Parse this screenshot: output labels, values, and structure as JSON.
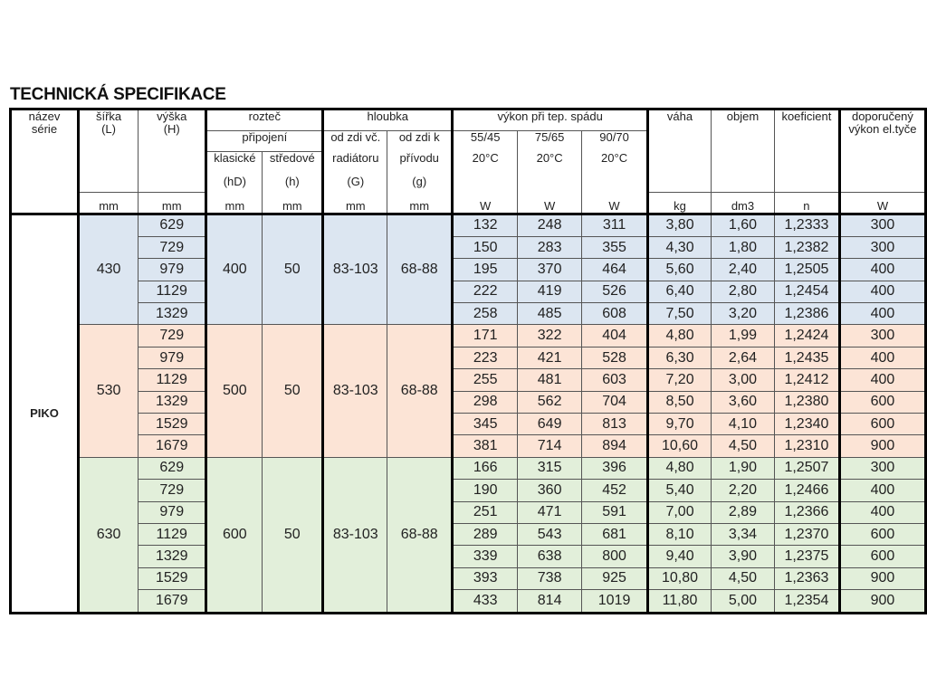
{
  "title": "TECHNICKÁ SPECIFIKACE",
  "header": {
    "nazev": "název série",
    "sirka": "šířka (L)",
    "vyska": "výška (H)",
    "roztec": "rozteč",
    "pripojeni": "připojení",
    "klasicke": "klasické",
    "stredove": "středové",
    "hD": "(hD)",
    "h": "(h)",
    "hloubka": "hloubka",
    "odzdi_vc": "od zdi  vč.",
    "radiatoru": "radiátoru",
    "G": "(G)",
    "odzdi_k": "od zdi  k",
    "privodu": "přívodu",
    "g": "(g)",
    "vykon": "výkon při tep.  spádu",
    "t1": "55/45",
    "t2": "75/65",
    "t3": "90/70",
    "c": "20°C",
    "vaha": "váha",
    "objem": "objem",
    "koeficient": "koeficient",
    "doporuceny": "doporučený výkon el.tyče",
    "units": [
      "mm",
      "mm",
      "mm",
      "mm",
      "mm",
      "mm",
      "W",
      "W",
      "W",
      "kg",
      "dm3",
      "n",
      "W"
    ]
  },
  "series": "PIKO",
  "colors": {
    "blue": "#dce6f1",
    "pink": "#fce4d6",
    "green": "#e2efda"
  },
  "groups": [
    {
      "L": "430",
      "hD": "400",
      "h": "50",
      "G": "83-103",
      "g": "68-88",
      "color": "blue",
      "rows": [
        [
          "629",
          "132",
          "248",
          "311",
          "3,80",
          "1,60",
          "1,2333",
          "300"
        ],
        [
          "729",
          "150",
          "283",
          "355",
          "4,30",
          "1,80",
          "1,2382",
          "300"
        ],
        [
          "979",
          "195",
          "370",
          "464",
          "5,60",
          "2,40",
          "1,2505",
          "400"
        ],
        [
          "1129",
          "222",
          "419",
          "526",
          "6,40",
          "2,80",
          "1,2454",
          "400"
        ],
        [
          "1329",
          "258",
          "485",
          "608",
          "7,50",
          "3,20",
          "1,2386",
          "400"
        ]
      ]
    },
    {
      "L": "530",
      "hD": "500",
      "h": "50",
      "G": "83-103",
      "g": "68-88",
      "color": "pink",
      "rows": [
        [
          "729",
          "171",
          "322",
          "404",
          "4,80",
          "1,99",
          "1,2424",
          "300"
        ],
        [
          "979",
          "223",
          "421",
          "528",
          "6,30",
          "2,64",
          "1,2435",
          "400"
        ],
        [
          "1129",
          "255",
          "481",
          "603",
          "7,20",
          "3,00",
          "1,2412",
          "400"
        ],
        [
          "1329",
          "298",
          "562",
          "704",
          "8,50",
          "3,60",
          "1,2380",
          "600"
        ],
        [
          "1529",
          "345",
          "649",
          "813",
          "9,70",
          "4,10",
          "1,2340",
          "600"
        ],
        [
          "1679",
          "381",
          "714",
          "894",
          "10,60",
          "4,50",
          "1,2310",
          "900"
        ]
      ]
    },
    {
      "L": "630",
      "hD": "600",
      "h": "50",
      "G": "83-103",
      "g": "68-88",
      "color": "green",
      "rows": [
        [
          "629",
          "166",
          "315",
          "396",
          "4,80",
          "1,90",
          "1,2507",
          "300"
        ],
        [
          "729",
          "190",
          "360",
          "452",
          "5,40",
          "2,20",
          "1,2466",
          "400"
        ],
        [
          "979",
          "251",
          "471",
          "591",
          "7,00",
          "2,89",
          "1,2366",
          "400"
        ],
        [
          "1129",
          "289",
          "543",
          "681",
          "8,10",
          "3,34",
          "1,2370",
          "600"
        ],
        [
          "1329",
          "339",
          "638",
          "800",
          "9,40",
          "3,90",
          "1,2375",
          "600"
        ],
        [
          "1529",
          "393",
          "738",
          "925",
          "10,80",
          "4,50",
          "1,2363",
          "900"
        ],
        [
          "1679",
          "433",
          "814",
          "1019",
          "11,80",
          "5,00",
          "1,2354",
          "900"
        ]
      ]
    }
  ]
}
